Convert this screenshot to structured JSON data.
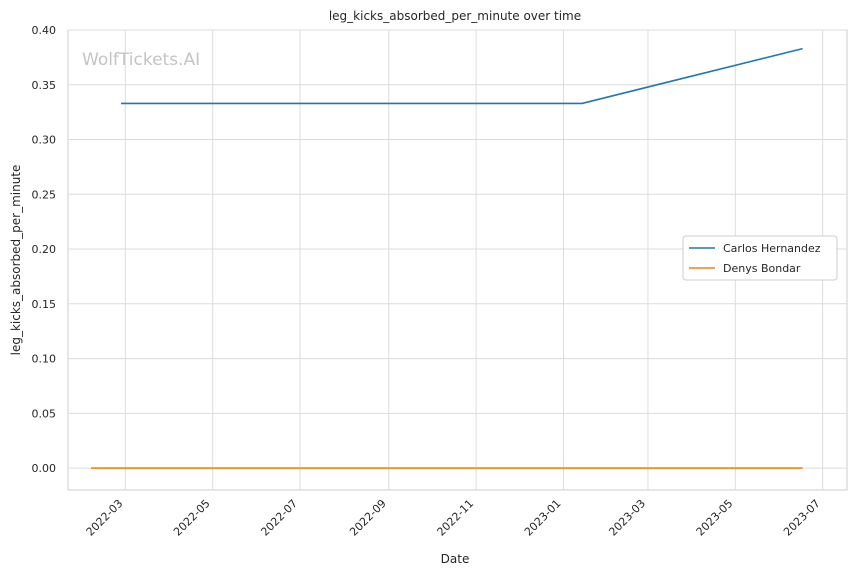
{
  "chart_data": {
    "type": "line",
    "title": "leg_kicks_absorbed_per_minute over time",
    "xlabel": "Date",
    "ylabel": "leg_kicks_absorbed_per_minute",
    "watermark": "WolfTickets.AI",
    "grid": true,
    "legend_position": "right",
    "x_ticks": [
      "2022-03",
      "2022-05",
      "2022-07",
      "2022-09",
      "2022-11",
      "2023-01",
      "2023-03",
      "2023-05",
      "2023-07"
    ],
    "y_ticks": [
      "0.00",
      "0.05",
      "0.10",
      "0.15",
      "0.20",
      "0.25",
      "0.30",
      "0.35",
      "0.40"
    ],
    "xlim": [
      "2022-01-20",
      "2023-07-18"
    ],
    "ylim": [
      -0.02,
      0.4
    ],
    "series": [
      {
        "name": "Carlos Hernandez",
        "color": "#1f77b4",
        "points": [
          {
            "x": "2022-02-26",
            "y": 0.333
          },
          {
            "x": "2023-01-14",
            "y": 0.333
          },
          {
            "x": "2023-06-17",
            "y": 0.383
          }
        ]
      },
      {
        "name": "Denys Bondar",
        "color": "#ff7f0e",
        "points": [
          {
            "x": "2022-02-05",
            "y": 0.0
          },
          {
            "x": "2023-06-17",
            "y": 0.0
          }
        ]
      }
    ]
  }
}
